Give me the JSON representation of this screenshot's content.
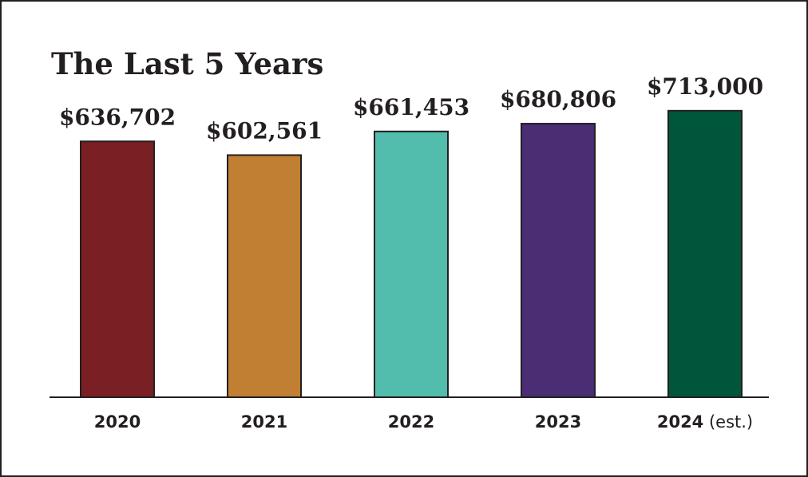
{
  "chart_data": {
    "type": "bar",
    "title": "The Last 5 Years",
    "categories": [
      "2020",
      "2021",
      "2022",
      "2023",
      "2024"
    ],
    "category_notes": [
      "",
      "",
      "",
      "",
      "(est.)"
    ],
    "values": [
      636702,
      602561,
      661453,
      680806,
      713000
    ],
    "value_labels": [
      "$636,702",
      "$602,561",
      "$661,453",
      "$680,806",
      "$713,000"
    ],
    "colors": [
      "#7a1f23",
      "#c07f33",
      "#52bcad",
      "#4a2d73",
      "#00563a"
    ],
    "ylim": [
      0,
      800000
    ],
    "xlabel": "",
    "ylabel": "",
    "grid": false,
    "legend": "none"
  }
}
